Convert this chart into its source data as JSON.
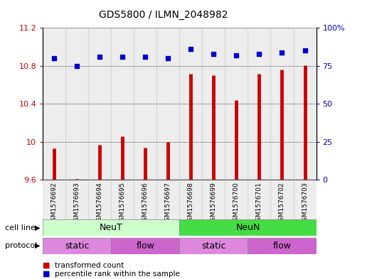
{
  "title": "GDS5800 / ILMN_2048982",
  "samples": [
    "GSM1576692",
    "GSM1576693",
    "GSM1576694",
    "GSM1576695",
    "GSM1576696",
    "GSM1576697",
    "GSM1576698",
    "GSM1576699",
    "GSM1576700",
    "GSM1576701",
    "GSM1576702",
    "GSM1576703"
  ],
  "bar_values": [
    9.93,
    9.61,
    9.97,
    10.06,
    9.94,
    10.0,
    10.72,
    10.7,
    10.44,
    10.72,
    10.76,
    10.81
  ],
  "dot_values": [
    80,
    75,
    81,
    81,
    81,
    80,
    86,
    83,
    82,
    83,
    84,
    85
  ],
  "ylim_left": [
    9.6,
    11.2
  ],
  "ylim_right": [
    0,
    100
  ],
  "yticks_left": [
    9.6,
    10.0,
    10.4,
    10.8,
    11.2
  ],
  "yticks_right": [
    0,
    25,
    50,
    75,
    100
  ],
  "ytick_labels_left": [
    "9.6",
    "10",
    "10.4",
    "10.8",
    "11.2"
  ],
  "ytick_labels_right": [
    "0",
    "25",
    "50",
    "75",
    "100%"
  ],
  "bar_color": "#cc0000",
  "dot_color": "#0000cc",
  "bar_base": 9.6,
  "cell_line_groups": [
    {
      "label": "NeuT",
      "start": 0,
      "end": 5,
      "color": "#ccffcc"
    },
    {
      "label": "NeuN",
      "start": 6,
      "end": 11,
      "color": "#44dd44"
    }
  ],
  "protocol_groups": [
    {
      "label": "static",
      "start": 0,
      "end": 2,
      "color": "#dd88dd"
    },
    {
      "label": "flow",
      "start": 3,
      "end": 5,
      "color": "#cc66cc"
    },
    {
      "label": "static",
      "start": 6,
      "end": 8,
      "color": "#dd88dd"
    },
    {
      "label": "flow",
      "start": 9,
      "end": 11,
      "color": "#cc66cc"
    }
  ],
  "legend_items": [
    {
      "label": "transformed count",
      "color": "#cc0000"
    },
    {
      "label": "percentile rank within the sample",
      "color": "#0000cc"
    }
  ],
  "cell_line_label": "cell line",
  "protocol_label": "protocol",
  "bg_color": "#ffffff",
  "grid_color": "#000000",
  "tick_color_left": "#cc0000",
  "tick_color_right": "#0000cc",
  "sample_bg_color": "#cccccc"
}
